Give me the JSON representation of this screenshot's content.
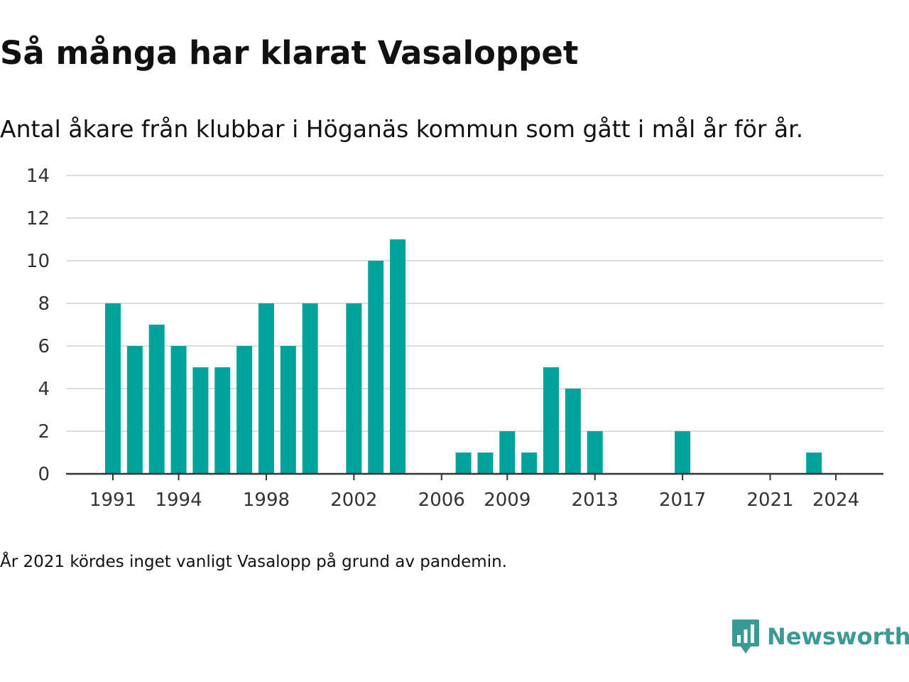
{
  "title": "Så många har klarat Vasaloppet",
  "subtitle": "Antal åkare från klubbar i Höganäs kommun som gått i mål år för år.",
  "note": "År 2021 kördes inget vanligt Vasalopp på grund av pandemin.",
  "logo": {
    "text": "Newsworthy",
    "icon": "newsworthy-chart-bubble-icon",
    "color": "#3c9a94"
  },
  "colors": {
    "bar": "#00a39a",
    "grid": "#dddddd",
    "axis": "#333333"
  },
  "chart_data": {
    "type": "bar",
    "title": "Så många har klarat Vasaloppet",
    "subtitle": "Antal åkare från klubbar i Höganäs kommun som gått i mål år för år.",
    "xlabel": "",
    "ylabel": "",
    "x": [
      1991,
      1992,
      1993,
      1994,
      1995,
      1996,
      1997,
      1998,
      1999,
      2000,
      2001,
      2002,
      2003,
      2004,
      2005,
      2006,
      2007,
      2008,
      2009,
      2010,
      2011,
      2012,
      2013,
      2014,
      2015,
      2016,
      2017,
      2018,
      2019,
      2020,
      2021,
      2022,
      2023,
      2024
    ],
    "values": [
      8,
      6,
      7,
      6,
      5,
      5,
      6,
      8,
      6,
      8,
      0,
      8,
      10,
      11,
      0,
      0,
      1,
      1,
      2,
      1,
      5,
      4,
      2,
      0,
      0,
      0,
      2,
      0,
      0,
      0,
      0,
      0,
      1,
      0
    ],
    "xticks": [
      "1991",
      "1994",
      "1998",
      "2002",
      "2006",
      "2009",
      "2013",
      "2017",
      "2021",
      "2024"
    ],
    "yticks": [
      0,
      2,
      4,
      6,
      8,
      10,
      12,
      14
    ],
    "ylim": [
      0,
      14
    ],
    "grid": true,
    "legend": "none"
  }
}
